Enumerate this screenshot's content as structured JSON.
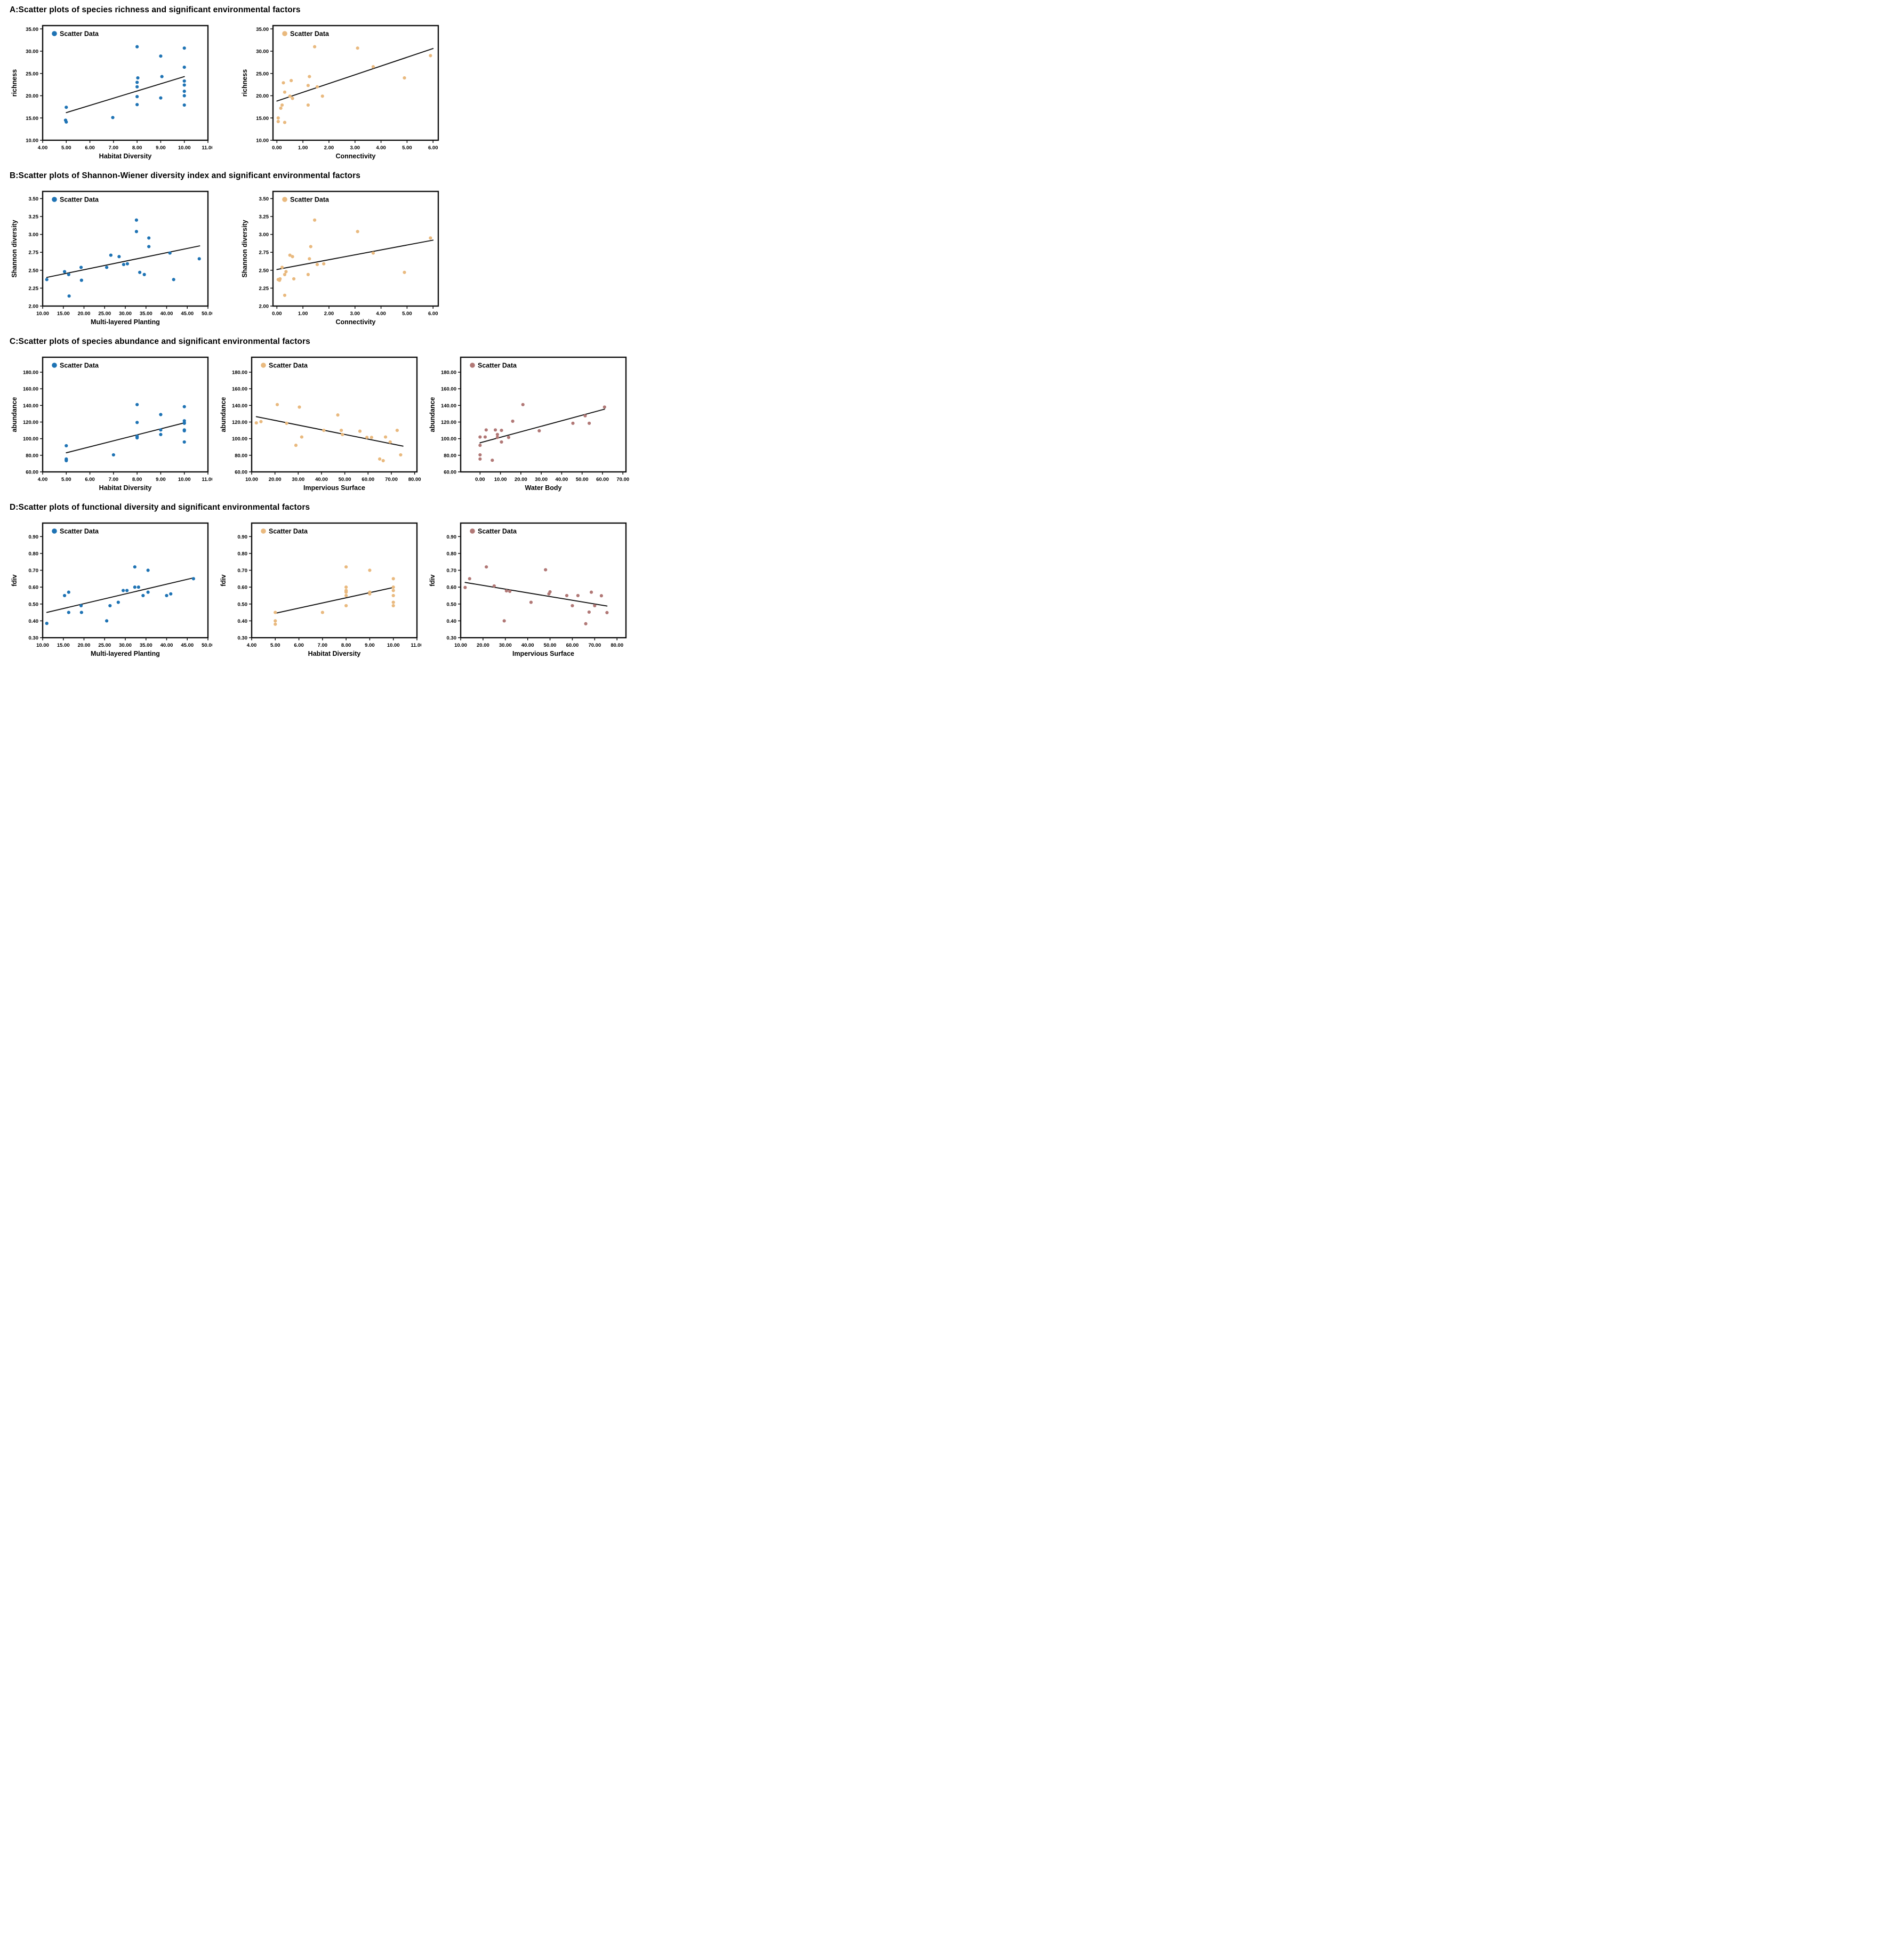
{
  "sections": [
    {
      "title": "A:Scatter plots of species richness and significant environmental factors"
    },
    {
      "title": "B:Scatter plots of Shannon-Wiener diversity index and significant environmental factors"
    },
    {
      "title": "C:Scatter plots of species abundance and significant environmental factors"
    },
    {
      "title": "D:Scatter plots of functional diversity and significant environmental factors"
    }
  ],
  "colors": {
    "blue": "#1e73b4",
    "tan": "#e9b97e",
    "rose": "#b17876",
    "trend": "#111111"
  },
  "chart_data": {
    "a1": {
      "type": "scatter",
      "legend": "Scatter Data",
      "color": "#1e73b4",
      "xlabel": "Habitat Diversity",
      "ylabel": "richness",
      "xlim": [
        4,
        11
      ],
      "xticks": [
        4,
        5,
        6,
        7,
        8,
        9,
        10,
        11
      ],
      "ylim": [
        10,
        35.75
      ],
      "yticks": [
        10,
        15,
        20,
        25,
        30,
        35
      ],
      "points": [
        [
          5.0,
          17.4
        ],
        [
          4.97,
          14.5
        ],
        [
          5.0,
          14.1
        ],
        [
          6.97,
          15.1
        ],
        [
          8.0,
          31.0
        ],
        [
          8.03,
          24.0
        ],
        [
          8.0,
          23.0
        ],
        [
          8.0,
          22.0
        ],
        [
          8.0,
          19.8
        ],
        [
          8.0,
          18.0
        ],
        [
          9.0,
          28.9
        ],
        [
          9.05,
          24.3
        ],
        [
          9.0,
          19.5
        ],
        [
          10.0,
          30.7
        ],
        [
          10.0,
          26.4
        ],
        [
          10.0,
          23.3
        ],
        [
          10.0,
          22.4
        ],
        [
          10.0,
          21.0
        ],
        [
          10.0,
          20.0
        ],
        [
          10.0,
          17.9
        ]
      ],
      "trend": [
        [
          5.0,
          16.2
        ],
        [
          10.0,
          24.3
        ]
      ]
    },
    "a2": {
      "type": "scatter",
      "legend": "Scatter Data",
      "color": "#e9b97e",
      "xlabel": "Connectivity",
      "ylabel": "richness",
      "xlim": [
        -0.15,
        6.2
      ],
      "xticks": [
        0,
        1,
        2,
        3,
        4,
        5,
        6
      ],
      "ylim": [
        10,
        35.75
      ],
      "yticks": [
        10,
        15,
        20,
        25,
        30,
        35
      ],
      "points": [
        [
          0.05,
          15.0
        ],
        [
          0.05,
          14.2
        ],
        [
          0.3,
          14.0
        ],
        [
          0.15,
          17.2
        ],
        [
          0.2,
          17.9
        ],
        [
          0.25,
          22.9
        ],
        [
          0.3,
          20.8
        ],
        [
          0.5,
          19.9
        ],
        [
          0.55,
          23.4
        ],
        [
          0.6,
          19.4
        ],
        [
          1.2,
          17.9
        ],
        [
          1.2,
          22.3
        ],
        [
          1.25,
          24.3
        ],
        [
          1.45,
          31.0
        ],
        [
          1.55,
          22.0
        ],
        [
          1.75,
          19.9
        ],
        [
          3.1,
          30.7
        ],
        [
          3.7,
          26.5
        ],
        [
          4.9,
          24.0
        ],
        [
          5.9,
          29.0
        ]
      ],
      "trend": [
        [
          0.0,
          18.8
        ],
        [
          6.0,
          30.6
        ]
      ]
    },
    "b1": {
      "type": "scatter",
      "legend": "Scatter Data",
      "color": "#1e73b4",
      "xlabel": "Multi-layered Planting",
      "ylabel": "Shannon diversity",
      "xlim": [
        10,
        50
      ],
      "xticks": [
        10,
        15,
        20,
        25,
        30,
        35,
        40,
        45,
        50
      ],
      "ylim": [
        2.0,
        3.6
      ],
      "yticks": [
        2.0,
        2.25,
        2.5,
        2.75,
        3.0,
        3.25,
        3.5
      ],
      "points": [
        [
          11,
          2.37
        ],
        [
          15.3,
          2.48
        ],
        [
          16.3,
          2.44
        ],
        [
          16.4,
          2.14
        ],
        [
          19.3,
          2.54
        ],
        [
          19.4,
          2.36
        ],
        [
          25.5,
          2.54
        ],
        [
          26.5,
          2.71
        ],
        [
          28.5,
          2.69
        ],
        [
          29.6,
          2.58
        ],
        [
          30.5,
          2.59
        ],
        [
          32.7,
          3.2
        ],
        [
          32.7,
          3.04
        ],
        [
          33.5,
          2.47
        ],
        [
          34.6,
          2.44
        ],
        [
          35.7,
          2.95
        ],
        [
          35.7,
          2.83
        ],
        [
          40.8,
          2.74
        ],
        [
          41.7,
          2.37
        ],
        [
          47.9,
          2.66
        ]
      ],
      "trend": [
        [
          11,
          2.4
        ],
        [
          48,
          2.84
        ]
      ]
    },
    "b2": {
      "type": "scatter",
      "legend": "Scatter Data",
      "color": "#e9b97e",
      "xlabel": "Connectivity",
      "ylabel": "Shannon diversity",
      "xlim": [
        -0.15,
        6.2
      ],
      "xticks": [
        0,
        1,
        2,
        3,
        4,
        5,
        6
      ],
      "ylim": [
        2.0,
        3.6
      ],
      "yticks": [
        2.0,
        2.25,
        2.5,
        2.75,
        3.0,
        3.25,
        3.5
      ],
      "points": [
        [
          0.05,
          2.37
        ],
        [
          0.1,
          2.36
        ],
        [
          0.12,
          2.38
        ],
        [
          0.2,
          2.54
        ],
        [
          0.3,
          2.44
        ],
        [
          0.35,
          2.48
        ],
        [
          0.3,
          2.15
        ],
        [
          0.5,
          2.71
        ],
        [
          0.6,
          2.69
        ],
        [
          0.65,
          2.38
        ],
        [
          1.2,
          2.44
        ],
        [
          1.25,
          2.66
        ],
        [
          1.3,
          2.83
        ],
        [
          1.45,
          3.2
        ],
        [
          1.55,
          2.58
        ],
        [
          1.8,
          2.59
        ],
        [
          3.1,
          3.04
        ],
        [
          3.7,
          2.74
        ],
        [
          4.9,
          2.47
        ],
        [
          5.9,
          2.95
        ]
      ],
      "trend": [
        [
          0.0,
          2.51
        ],
        [
          6.0,
          2.92
        ]
      ]
    },
    "c1": {
      "type": "scatter",
      "legend": "Scatter Data",
      "color": "#1e73b4",
      "xlabel": "Habitat Diversity",
      "ylabel": "abundance",
      "xlim": [
        4,
        11
      ],
      "xticks": [
        4,
        5,
        6,
        7,
        8,
        9,
        10,
        11
      ],
      "ylim": [
        60,
        198
      ],
      "yticks": [
        60,
        80,
        100,
        120,
        140,
        160,
        180
      ],
      "points": [
        [
          5.0,
          91.5
        ],
        [
          5.0,
          75.5
        ],
        [
          5.0,
          74.5
        ],
        [
          5.0,
          73.5
        ],
        [
          7.0,
          80.5
        ],
        [
          8.0,
          141
        ],
        [
          8.0,
          119.5
        ],
        [
          8.0,
          103
        ],
        [
          8.0,
          102
        ],
        [
          8.0,
          101
        ],
        [
          9.0,
          129
        ],
        [
          9.0,
          110.5
        ],
        [
          9.0,
          105
        ],
        [
          10.0,
          138.5
        ],
        [
          10.0,
          121.5
        ],
        [
          10.0,
          119
        ],
        [
          10.0,
          118.5
        ],
        [
          10.0,
          110.5
        ],
        [
          10.0,
          109.5
        ],
        [
          10.0,
          96
        ]
      ],
      "trend": [
        [
          5.0,
          83
        ],
        [
          10.0,
          119
        ]
      ]
    },
    "c2": {
      "type": "scatter",
      "legend": "Scatter Data",
      "color": "#e9b97e",
      "xlabel": "Impervious Surface",
      "ylabel": "abundance",
      "xlim": [
        10,
        81
      ],
      "xticks": [
        10,
        20,
        30,
        40,
        50,
        60,
        70,
        80
      ],
      "ylim": [
        60,
        198
      ],
      "yticks": [
        60,
        80,
        100,
        120,
        140,
        160,
        180
      ],
      "points": [
        [
          12,
          119
        ],
        [
          14,
          120.5
        ],
        [
          21,
          141
        ],
        [
          25,
          118.5
        ],
        [
          29,
          92
        ],
        [
          30.5,
          138
        ],
        [
          31.5,
          102
        ],
        [
          41,
          110
        ],
        [
          47,
          128.5
        ],
        [
          48.5,
          110
        ],
        [
          49,
          105
        ],
        [
          56.5,
          109
        ],
        [
          59.5,
          101.5
        ],
        [
          61.5,
          101.5
        ],
        [
          65,
          75.5
        ],
        [
          66.5,
          73.5
        ],
        [
          67.5,
          102
        ],
        [
          69.5,
          96
        ],
        [
          72.5,
          110
        ],
        [
          74,
          80.5
        ]
      ],
      "trend": [
        [
          12,
          126.5
        ],
        [
          75,
          91
        ]
      ]
    },
    "c3": {
      "type": "scatter",
      "legend": "Scatter Data",
      "color": "#b17876",
      "xlabel": "Water Body",
      "ylabel": "abundance",
      "xlim": [
        -9.5,
        71.5
      ],
      "xticks": [
        0,
        10,
        20,
        30,
        40,
        50,
        60,
        70
      ],
      "ylim": [
        60,
        198
      ],
      "yticks": [
        60,
        80,
        100,
        120,
        140,
        160,
        180
      ],
      "points": [
        [
          0,
          102
        ],
        [
          0,
          92
        ],
        [
          0,
          80.5
        ],
        [
          0,
          75.5
        ],
        [
          2.5,
          102
        ],
        [
          3,
          110.5
        ],
        [
          6,
          74
        ],
        [
          7.5,
          110.5
        ],
        [
          8.5,
          105
        ],
        [
          8.5,
          101.5
        ],
        [
          10.5,
          110
        ],
        [
          10.5,
          96
        ],
        [
          14,
          101.5
        ],
        [
          16,
          121
        ],
        [
          21,
          141
        ],
        [
          29,
          109.5
        ],
        [
          45.5,
          118.5
        ],
        [
          51.5,
          127.5
        ],
        [
          53.5,
          118.5
        ],
        [
          61,
          138
        ]
      ],
      "trend": [
        [
          0,
          95
        ],
        [
          61,
          135.5
        ]
      ]
    },
    "d1": {
      "type": "scatter",
      "legend": "Scatter Data",
      "color": "#1e73b4",
      "xlabel": "Multi-layered Planting",
      "ylabel": "fdiv",
      "xlim": [
        10,
        50
      ],
      "xticks": [
        10,
        15,
        20,
        25,
        30,
        35,
        40,
        45,
        50
      ],
      "ylim": [
        0.3,
        0.98
      ],
      "yticks": [
        0.3,
        0.4,
        0.5,
        0.6,
        0.7,
        0.8,
        0.9
      ],
      "points": [
        [
          11,
          0.385
        ],
        [
          15.3,
          0.55
        ],
        [
          16.3,
          0.57
        ],
        [
          16.3,
          0.45
        ],
        [
          19.3,
          0.49
        ],
        [
          19.4,
          0.45
        ],
        [
          25.5,
          0.4
        ],
        [
          26.3,
          0.49
        ],
        [
          28.3,
          0.51
        ],
        [
          29.5,
          0.58
        ],
        [
          30.4,
          0.58
        ],
        [
          32.3,
          0.72
        ],
        [
          32.3,
          0.6
        ],
        [
          33.2,
          0.6
        ],
        [
          34.3,
          0.55
        ],
        [
          35.5,
          0.7
        ],
        [
          35.5,
          0.57
        ],
        [
          40,
          0.55
        ],
        [
          41,
          0.56
        ],
        [
          46.5,
          0.65
        ]
      ],
      "trend": [
        [
          11,
          0.45
        ],
        [
          46.5,
          0.655
        ]
      ]
    },
    "d2": {
      "type": "scatter",
      "legend": "Scatter Data",
      "color": "#e9b97e",
      "xlabel": "Habitat Diversity",
      "ylabel": "fdiv",
      "xlim": [
        4,
        11
      ],
      "xticks": [
        4,
        5,
        6,
        7,
        8,
        9,
        10,
        11
      ],
      "ylim": [
        0.3,
        0.98
      ],
      "yticks": [
        0.3,
        0.4,
        0.5,
        0.6,
        0.7,
        0.8,
        0.9
      ],
      "points": [
        [
          5.0,
          0.45
        ],
        [
          5.0,
          0.4
        ],
        [
          5.0,
          0.38
        ],
        [
          7.0,
          0.45
        ],
        [
          8.0,
          0.72
        ],
        [
          8.0,
          0.6
        ],
        [
          8.0,
          0.58
        ],
        [
          8.0,
          0.575
        ],
        [
          8.0,
          0.57
        ],
        [
          8.0,
          0.55
        ],
        [
          8.0,
          0.49
        ],
        [
          9.0,
          0.7
        ],
        [
          9.0,
          0.57
        ],
        [
          9.0,
          0.56
        ],
        [
          10.0,
          0.65
        ],
        [
          10.0,
          0.6
        ],
        [
          10.0,
          0.58
        ],
        [
          10.0,
          0.55
        ],
        [
          10.0,
          0.51
        ],
        [
          10.0,
          0.49
        ]
      ],
      "trend": [
        [
          5.0,
          0.445
        ],
        [
          10.0,
          0.598
        ]
      ]
    },
    "d3": {
      "type": "scatter",
      "legend": "Scatter Data",
      "color": "#b17876",
      "xlabel": "Impervious Surface",
      "ylabel": "fdiv",
      "xlim": [
        10,
        84
      ],
      "xticks": [
        10,
        20,
        30,
        40,
        50,
        60,
        70,
        80
      ],
      "ylim": [
        0.3,
        0.98
      ],
      "yticks": [
        0.3,
        0.4,
        0.5,
        0.6,
        0.7,
        0.8,
        0.9
      ],
      "points": [
        [
          12,
          0.598
        ],
        [
          14,
          0.65
        ],
        [
          21.5,
          0.72
        ],
        [
          25,
          0.607
        ],
        [
          29.5,
          0.4
        ],
        [
          30.5,
          0.578
        ],
        [
          32,
          0.575
        ],
        [
          41.5,
          0.51
        ],
        [
          48,
          0.703
        ],
        [
          49.5,
          0.56
        ],
        [
          50,
          0.572
        ],
        [
          57.5,
          0.55
        ],
        [
          60,
          0.49
        ],
        [
          62.5,
          0.55
        ],
        [
          66,
          0.383
        ],
        [
          67.5,
          0.452
        ],
        [
          68.5,
          0.57
        ],
        [
          70,
          0.49
        ],
        [
          73,
          0.549
        ],
        [
          75.5,
          0.449
        ]
      ],
      "trend": [
        [
          12,
          0.628
        ],
        [
          75.5,
          0.488
        ]
      ]
    }
  }
}
